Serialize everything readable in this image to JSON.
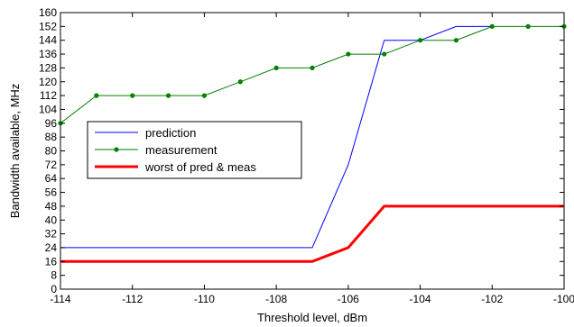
{
  "chart_data": {
    "type": "line",
    "xlabel": "Threshold level, dBm",
    "ylabel": "Bandwidth available, MHz",
    "xlim": [
      -114,
      -100
    ],
    "ylim": [
      0,
      160
    ],
    "xticks": [
      -114,
      -112,
      -110,
      -108,
      -106,
      -104,
      -102,
      -100
    ],
    "yticks": [
      0,
      8,
      16,
      24,
      32,
      40,
      48,
      56,
      64,
      72,
      80,
      88,
      96,
      104,
      112,
      120,
      128,
      136,
      144,
      152,
      160
    ],
    "grid": false,
    "legend_position": "middle-left",
    "series": [
      {
        "name": "prediction",
        "color": "#0000ff",
        "marker": "none",
        "x": [
          -114,
          -107,
          -106,
          -105,
          -104,
          -103,
          -102
        ],
        "y": [
          24,
          24,
          72,
          144,
          144,
          152,
          152
        ]
      },
      {
        "name": "measurement",
        "color": "#008000",
        "marker": "dot",
        "x": [
          -114,
          -113,
          -112,
          -111,
          -110,
          -109,
          -108,
          -107,
          -106,
          -105,
          -104,
          -103,
          -102,
          -101,
          -100
        ],
        "y": [
          96,
          112,
          112,
          112,
          112,
          120,
          128,
          128,
          136,
          136,
          144,
          144,
          152,
          152,
          152
        ]
      },
      {
        "name": "worst of pred & meas",
        "color": "#ff0000",
        "marker": "none",
        "bold": true,
        "x": [
          -114,
          -107,
          -106,
          -105,
          -100
        ],
        "y": [
          16,
          16,
          24,
          48,
          48
        ]
      }
    ]
  }
}
